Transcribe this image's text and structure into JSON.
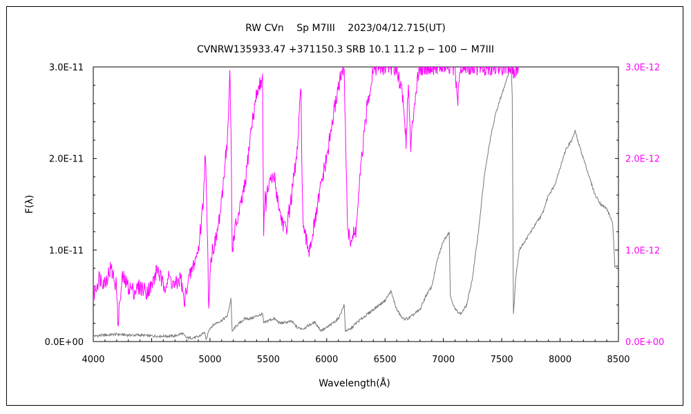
{
  "chart_data": {
    "type": "line",
    "title": "RW CVn　 Sp M7III　 2023/04/12.715(UT)",
    "subtitle": "CVNRW135933.47 +371150.3 SRB 10.1 11.2 p − 100 − M7III",
    "xlabel": "Wavelength(Å)",
    "ylabel": "F(λ)",
    "xlim": [
      4000,
      8500
    ],
    "ylim": [
      0,
      3e-11
    ],
    "y2lim": [
      0,
      3e-12
    ],
    "x_ticks": [
      "4000",
      "4500",
      "5000",
      "5500",
      "6000",
      "6500",
      "7000",
      "7500",
      "8000",
      "8500"
    ],
    "y_ticks": [
      "0.0E+00",
      "1.0E-11",
      "2.0E-11",
      "3.0E-11"
    ],
    "y2_ticks": [
      "0.0E+00",
      "1.0E-12",
      "2.0E-12",
      "3.0E-12"
    ],
    "grid": false,
    "series": [
      {
        "axis": "left",
        "color": "#777777",
        "x": [
          4000,
          4100,
          4200,
          4300,
          4400,
          4500,
          4600,
          4700,
          4760,
          4800,
          4850,
          4900,
          4950,
          4970,
          4990,
          5010,
          5050,
          5100,
          5150,
          5180,
          5190,
          5210,
          5250,
          5300,
          5350,
          5400,
          5450,
          5460,
          5500,
          5550,
          5600,
          5700,
          5750,
          5800,
          5850,
          5900,
          5950,
          6000,
          6050,
          6100,
          6150,
          6160,
          6200,
          6250,
          6300,
          6350,
          6400,
          6450,
          6500,
          6550,
          6600,
          6650,
          6700,
          6750,
          6800,
          6850,
          6900,
          6950,
          7000,
          7050,
          7060,
          7100,
          7150,
          7200,
          7250,
          7300,
          7350,
          7400,
          7450,
          7500,
          7550,
          7580,
          7590,
          7600,
          7620,
          7650,
          7700,
          7750,
          7800,
          7850,
          7900,
          7950,
          8000,
          8050,
          8100,
          8130,
          8150,
          8200,
          8250,
          8300,
          8350,
          8400,
          8450,
          8470,
          8500
        ],
        "y": [
          6e-13,
          7e-13,
          8e-13,
          7e-13,
          7e-13,
          6e-13,
          6e-13,
          6e-13,
          9e-13,
          4e-13,
          4e-13,
          5e-13,
          1e-12,
          2e-13,
          1.3e-12,
          1.6e-12,
          2e-12,
          2.3e-12,
          2.8e-12,
          4.7e-12,
          1e-12,
          1.5e-12,
          2e-12,
          2.5e-12,
          2.5e-12,
          2.8e-12,
          3e-12,
          2e-12,
          2.3e-12,
          2.5e-12,
          2e-12,
          2.2e-12,
          1.5e-12,
          1.4e-12,
          1.8e-12,
          2.1e-12,
          1.2e-12,
          1.5e-12,
          2e-12,
          2.5e-12,
          4e-12,
          1.2e-12,
          1.3e-12,
          2e-12,
          2.5e-12,
          3e-12,
          3.5e-12,
          4e-12,
          4.5e-12,
          5.5e-12,
          3.5e-12,
          2.5e-12,
          2.5e-12,
          3e-12,
          3.5e-12,
          5e-12,
          6e-12,
          9e-12,
          1.1e-11,
          1.2e-11,
          5e-12,
          3.5e-12,
          3e-12,
          4e-12,
          7e-12,
          1.2e-11,
          1.8e-11,
          2.2e-11,
          2.5e-11,
          2.7e-11,
          2.9e-11,
          3e-11,
          2.7e-11,
          3e-12,
          7e-12,
          1e-11,
          1.1e-11,
          1.2e-11,
          1.3e-11,
          1.4e-11,
          1.6e-11,
          1.7e-11,
          1.9e-11,
          2.1e-11,
          2.2e-11,
          2.3e-11,
          2.2e-11,
          2e-11,
          1.8e-11,
          1.6e-11,
          1.5e-11,
          1.45e-11,
          1.3e-11,
          8e-12,
          8.5e-12
        ]
      },
      {
        "axis": "right",
        "color": "#ff00ff",
        "x": [
          4000,
          4050,
          4100,
          4150,
          4200,
          4210,
          4250,
          4300,
          4350,
          4400,
          4450,
          4500,
          4550,
          4600,
          4650,
          4700,
          4750,
          4780,
          4800,
          4850,
          4900,
          4940,
          4960,
          4980,
          4990,
          5000,
          5020,
          5050,
          5100,
          5130,
          5150,
          5170,
          5180,
          5190,
          5200,
          5210,
          5250,
          5300,
          5350,
          5400,
          5450,
          5460,
          5470,
          5480,
          5500,
          5550,
          5600,
          5650,
          5700,
          5750,
          5780,
          5790,
          5800,
          5850,
          5900,
          5950,
          6000,
          6050,
          6100,
          6150,
          6160,
          6170,
          6180,
          6200,
          6250,
          6300,
          6350,
          6400,
          6450,
          6500,
          6550,
          6600,
          6650,
          6680,
          6700,
          6720,
          6750,
          6780,
          6800,
          6850,
          6900,
          6950,
          7000,
          7050,
          7100,
          7120,
          7150,
          7200,
          7250,
          7300,
          7350,
          7400,
          7450,
          7500,
          7550,
          7580,
          7600,
          7620,
          7650
        ],
        "y": [
          5e-13,
          7e-13,
          6.5e-13,
          8e-13,
          6e-13,
          2e-13,
          7e-13,
          6e-13,
          5.5e-13,
          6e-13,
          5.5e-13,
          6e-13,
          8e-13,
          6e-13,
          7e-13,
          6e-13,
          7e-13,
          4e-13,
          6e-13,
          8e-13,
          1e-12,
          1.5e-12,
          2.1e-12,
          1e-12,
          3.5e-13,
          8e-13,
          1e-12,
          1.1e-12,
          1.5e-12,
          2e-12,
          2.2e-12,
          2.9e-12,
          2.3e-12,
          1e-12,
          1.1e-12,
          1.2e-12,
          1.4e-12,
          1.7e-12,
          2.3e-12,
          2.7e-12,
          2.9e-12,
          1.1e-12,
          1.6e-12,
          1.5e-12,
          1.7e-12,
          1.8e-12,
          1.4e-12,
          1.2e-12,
          1.6e-12,
          2.1e-12,
          2.8e-12,
          1.7e-12,
          1.2e-12,
          1e-12,
          1.3e-12,
          1.7e-12,
          2e-12,
          2.4e-12,
          2.8e-12,
          3e-12,
          2.3e-12,
          1.8e-12,
          1.2e-12,
          1.1e-12,
          1.2e-12,
          2e-12,
          2.6e-12,
          3e-12,
          3e-12,
          3e-12,
          3e-12,
          3e-12,
          2.7e-12,
          2.2e-12,
          2.8e-12,
          2.1e-12,
          2.6e-12,
          2.9e-12,
          3e-12,
          3e-12,
          3e-12,
          3e-12,
          3e-12,
          3e-12,
          3e-12,
          2.6e-12,
          3e-12,
          3e-12,
          3e-12,
          3e-12,
          3e-12,
          3e-12,
          3e-12,
          3e-12,
          3e-12,
          3e-12,
          2.9e-12,
          3e-12,
          3e-12
        ]
      }
    ]
  }
}
